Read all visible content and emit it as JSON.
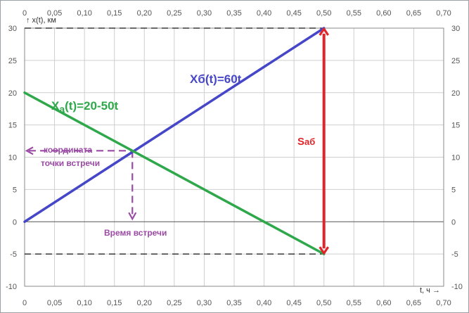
{
  "chart_data": {
    "type": "line",
    "xlabel": "t, ч →",
    "ylabel": "↑ x(t), км",
    "xlim": [
      0,
      0.7
    ],
    "ylim": [
      -10,
      30
    ],
    "x_ticks": [
      "0",
      "0,05",
      "0,10",
      "0,15",
      "0,20",
      "0,25",
      "0,30",
      "0,35",
      "0,40",
      "0,45",
      "0,50",
      "0,55",
      "0,60",
      "0,65",
      "0,70"
    ],
    "y_ticks": [
      "30",
      "25",
      "20",
      "15",
      "10",
      "5",
      "0",
      "-5",
      "-10"
    ],
    "grid": true,
    "series": [
      {
        "name": "Xб(t)=60t",
        "color": "#4646c8",
        "points": [
          [
            0,
            0
          ],
          [
            0.5,
            30
          ]
        ]
      },
      {
        "name": "Xa(t)=20-50t",
        "color": "#2ea84a",
        "points": [
          [
            0,
            20
          ],
          [
            0.5,
            -5
          ]
        ]
      }
    ],
    "meeting_point": {
      "t": 0.18,
      "x": 11
    },
    "distance_arrow": {
      "t": 0.5,
      "from": -5,
      "to": 30,
      "color": "#e0262a"
    },
    "annotations": {
      "blue_label": "Xб(t)=60t",
      "green_label_prefix": "X",
      "green_label_sub": "a",
      "green_label_rest": "(t)=20-50t",
      "distance_main": "S",
      "distance_sub": "аб",
      "coord_line1": "координата",
      "coord_line2": "точки встречи",
      "time_label": "Время встречи"
    },
    "colors": {
      "blue": "#4646c8",
      "green": "#2ea84a",
      "red": "#e0262a",
      "purple": "#9b4aa5"
    }
  }
}
